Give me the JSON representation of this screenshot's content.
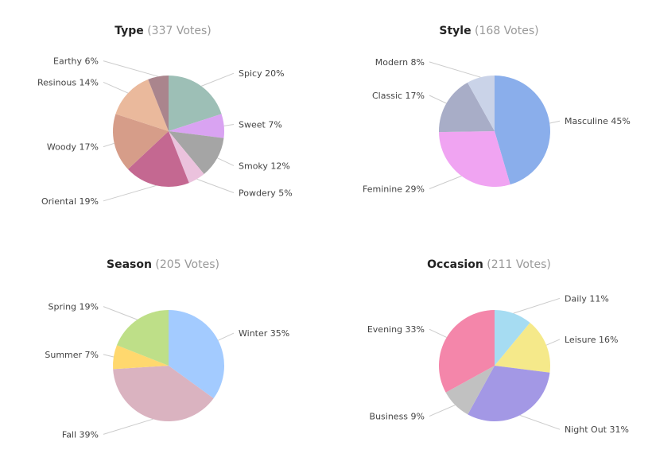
{
  "colors": {
    "leader_line": "#cccccc",
    "title": "#222222",
    "votes": "#999999",
    "label": "#444444"
  },
  "chart_data": [
    {
      "type": "pie",
      "title": "Type",
      "votes": "(337 Votes)",
      "slices": [
        {
          "label": "Spicy 20%",
          "value": 20,
          "color": "#9dbfb6"
        },
        {
          "label": "Sweet 7%",
          "value": 7,
          "color": "#d9a3f2"
        },
        {
          "label": "Smoky 12%",
          "value": 12,
          "color": "#a5a5a5"
        },
        {
          "label": "Powdery 5%",
          "value": 5,
          "color": "#ebc2dd"
        },
        {
          "label": "Oriental 19%",
          "value": 19,
          "color": "#c46891"
        },
        {
          "label": "Woody 17%",
          "value": 17,
          "color": "#d69d89"
        },
        {
          "label": "Resinous 14%",
          "value": 14,
          "color": "#eab99c"
        },
        {
          "label": "Earthy 6%",
          "value": 6,
          "color": "#aa858d"
        }
      ]
    },
    {
      "type": "pie",
      "title": "Style",
      "votes": "(168 Votes)",
      "slices": [
        {
          "label": "Masculine 45%",
          "value": 45,
          "color": "#8aaeeb"
        },
        {
          "label": "Feminine 29%",
          "value": 29,
          "color": "#f0a4f2"
        },
        {
          "label": "Classic 17%",
          "value": 17,
          "color": "#a8adc7"
        },
        {
          "label": "Modern 8%",
          "value": 8,
          "color": "#cad3e8"
        }
      ]
    },
    {
      "type": "pie",
      "title": "Season",
      "votes": "(205 Votes)",
      "slices": [
        {
          "label": "Winter 35%",
          "value": 35,
          "color": "#a3cbff"
        },
        {
          "label": "Fall 39%",
          "value": 39,
          "color": "#dab3c0"
        },
        {
          "label": "Summer 7%",
          "value": 7,
          "color": "#ffd86e"
        },
        {
          "label": "Spring 19%",
          "value": 19,
          "color": "#bedf88"
        }
      ]
    },
    {
      "type": "pie",
      "title": "Occasion",
      "votes": "(211 Votes)",
      "slices": [
        {
          "label": "Daily 11%",
          "value": 11,
          "color": "#a6dcf2"
        },
        {
          "label": "Leisure 16%",
          "value": 16,
          "color": "#f5e98a"
        },
        {
          "label": "Night Out 31%",
          "value": 31,
          "color": "#a398e5"
        },
        {
          "label": "Business 9%",
          "value": 9,
          "color": "#c1c1c1"
        },
        {
          "label": "Evening 33%",
          "value": 33,
          "color": "#f486aa"
        }
      ]
    }
  ]
}
